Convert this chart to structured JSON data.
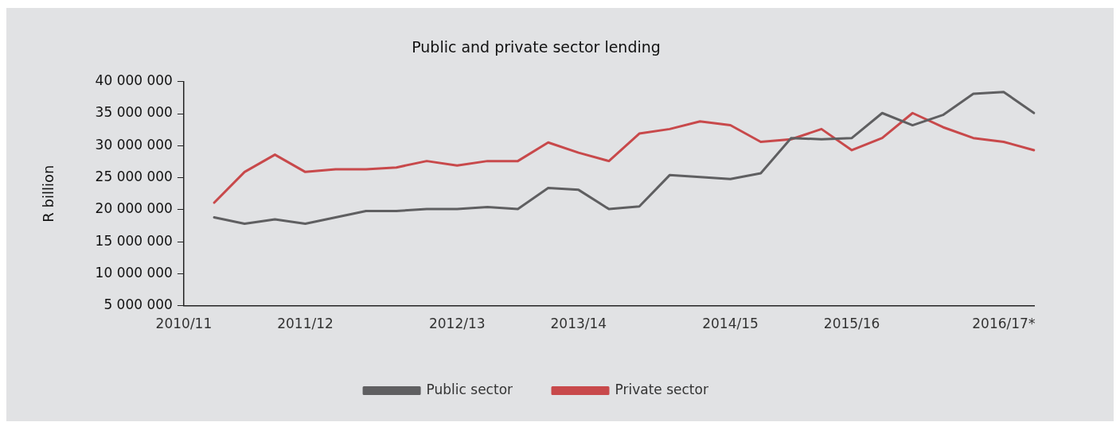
{
  "chart_data": {
    "type": "line",
    "title": "Public and private sector lending",
    "ylabel": "R billion",
    "categories": [
      "2010/11",
      null,
      null,
      null,
      "2011/12",
      null,
      null,
      null,
      null,
      "2012/13",
      null,
      null,
      null,
      "2013/14",
      null,
      null,
      null,
      null,
      "2014/15",
      null,
      null,
      null,
      "2015/16",
      null,
      null,
      null,
      null,
      "2016/17*",
      null
    ],
    "ylim": [
      5000000,
      40000000
    ],
    "yticks": [
      {
        "value": 5000000,
        "label": "5 000 000"
      },
      {
        "value": 10000000,
        "label": "10 000 000"
      },
      {
        "value": 15000000,
        "label": "15 000 000"
      },
      {
        "value": 20000000,
        "label": "20 000 000"
      },
      {
        "value": 25000000,
        "label": "25 000 000"
      },
      {
        "value": 30000000,
        "label": "30 000 000"
      },
      {
        "value": 35000000,
        "label": "35 000 000"
      },
      {
        "value": 40000000,
        "label": "40 000 000"
      }
    ],
    "series": [
      {
        "name": "Public sector",
        "color": "#5f5f61",
        "values": [
          null,
          18800000,
          17800000,
          18500000,
          17800000,
          18800000,
          19800000,
          19800000,
          20100000,
          20100000,
          20400000,
          20100000,
          23400000,
          23100000,
          20100000,
          20500000,
          25400000,
          25100000,
          24800000,
          25700000,
          31200000,
          31000000,
          31200000,
          35100000,
          33200000,
          34800000,
          38100000,
          38400000,
          35100000
        ]
      },
      {
        "name": "Private sector",
        "color": "#c8494b",
        "values": [
          null,
          21100000,
          25900000,
          28600000,
          25900000,
          26300000,
          26300000,
          26600000,
          27600000,
          26900000,
          27600000,
          27600000,
          30500000,
          28900000,
          27600000,
          31900000,
          32600000,
          33800000,
          33200000,
          30600000,
          31000000,
          32600000,
          29300000,
          31200000,
          35100000,
          32900000,
          31200000,
          30600000,
          29300000
        ]
      }
    ],
    "legend": "bottom",
    "grid": false,
    "marker": "none",
    "line_style": "solid"
  }
}
